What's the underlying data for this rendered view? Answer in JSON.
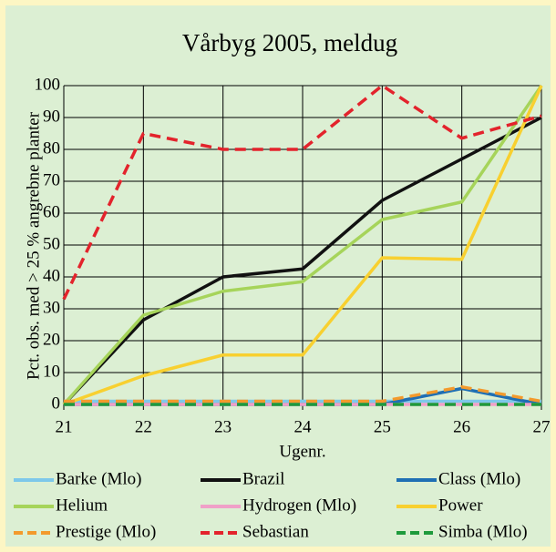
{
  "chart_data": {
    "type": "line",
    "title": "Vårbyg 2005, meldug",
    "x_label": "Ugenr.",
    "y_label": "Pct. obs. med > 25 % angrebne planter",
    "x": [
      21,
      22,
      23,
      24,
      25,
      26,
      27
    ],
    "xlim": [
      21,
      27
    ],
    "xticks": [
      21,
      22,
      23,
      24,
      25,
      26,
      27
    ],
    "ylim": [
      0,
      100
    ],
    "yticks": [
      0,
      10,
      20,
      30,
      40,
      50,
      60,
      70,
      80,
      90,
      100
    ],
    "grid": true,
    "legend": "bottom",
    "series": [
      {
        "name": "Barke (Mlo)",
        "color": "#7ec8ea",
        "dashed": false,
        "values": [
          1,
          1,
          1,
          1,
          1,
          1,
          1
        ]
      },
      {
        "name": "Brazil",
        "color": "#111111",
        "dashed": false,
        "values": [
          0,
          26.5,
          40,
          42.5,
          64,
          77,
          90
        ]
      },
      {
        "name": "Class (Mlo)",
        "color": "#1f6fb4",
        "dashed": false,
        "values": [
          0,
          0,
          0,
          0,
          0,
          5,
          0
        ]
      },
      {
        "name": "Helium",
        "color": "#a6d45a",
        "dashed": false,
        "values": [
          0,
          28,
          35.5,
          38.5,
          58,
          63.5,
          100
        ]
      },
      {
        "name": "Hydrogen (Mlo)",
        "color": "#f0a0c8",
        "dashed": false,
        "values": [
          0,
          0,
          0,
          0,
          0,
          0,
          0
        ]
      },
      {
        "name": "Power",
        "color": "#f8d030",
        "dashed": false,
        "values": [
          0,
          9,
          15.5,
          15.5,
          46,
          45.5,
          100
        ]
      },
      {
        "name": "Prestige (Mlo)",
        "color": "#f39a2c",
        "dashed": true,
        "values": [
          1,
          1,
          1,
          1,
          1,
          5.5,
          1
        ]
      },
      {
        "name": "Sebastian",
        "color": "#e3232c",
        "dashed": true,
        "values": [
          33,
          85,
          80,
          80,
          100,
          83.5,
          90.5
        ]
      },
      {
        "name": "Simba (Mlo)",
        "color": "#1e9a3c",
        "dashed": true,
        "values": [
          0,
          0,
          0,
          0,
          0,
          0,
          0
        ]
      }
    ]
  }
}
